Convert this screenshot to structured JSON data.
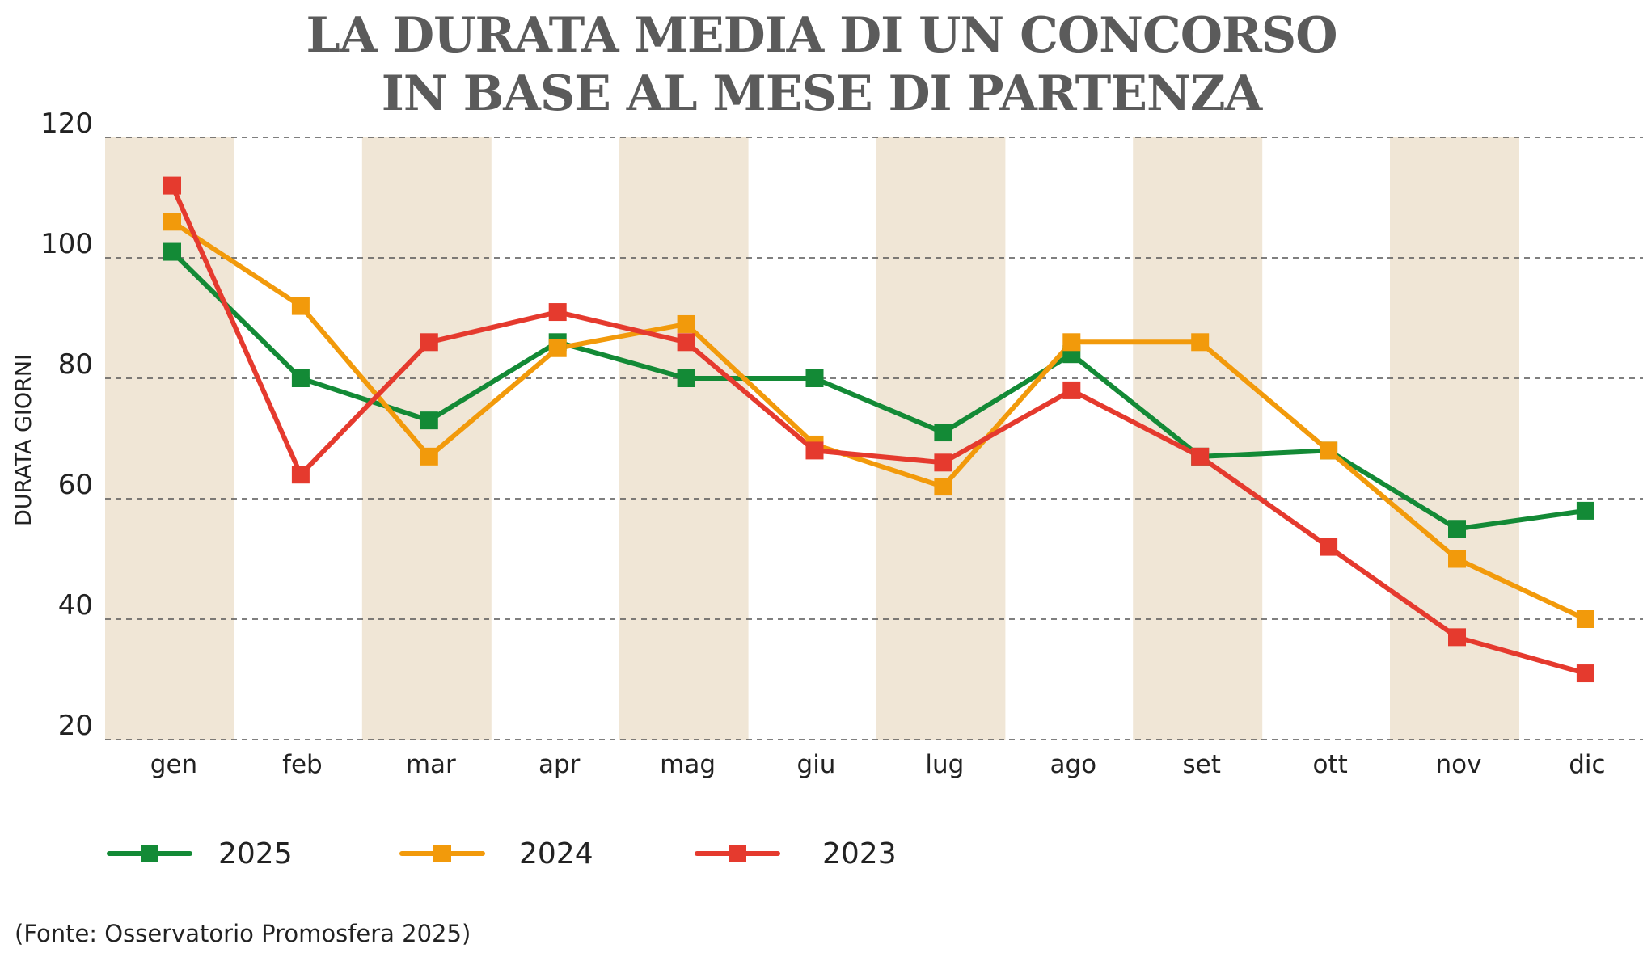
{
  "title": {
    "line1": "LA DURATA MEDIA DI UN CONCORSO",
    "line2": "IN BASE AL MESE DI PARTENZA"
  },
  "source": "(Fonte: Osservatorio Promosfera 2025)",
  "colors": {
    "band": "#f0e6d6",
    "grid": "#555555",
    "text": "#222222",
    "title": "#5b5b5b"
  },
  "chart_data": {
    "type": "line",
    "title": "LA DURATA MEDIA DI UN CONCORSO IN BASE AL MESE DI PARTENZA",
    "xlabel": "",
    "ylabel": "DURATA GIORNI",
    "ylim": [
      20,
      120
    ],
    "yticks": [
      20,
      40,
      60,
      80,
      100,
      120
    ],
    "categories": [
      "gen",
      "feb",
      "mar",
      "apr",
      "mag",
      "giu",
      "lug",
      "ago",
      "set",
      "ott",
      "nov",
      "dic"
    ],
    "grid": true,
    "legend_position": "bottom",
    "series": [
      {
        "name": "2025",
        "color": "#138a36",
        "values": [
          101,
          80,
          73,
          86,
          80,
          80,
          71,
          84,
          67,
          68,
          55,
          58
        ]
      },
      {
        "name": "2024",
        "color": "#f29a0b",
        "values": [
          106,
          92,
          67,
          85,
          89,
          69,
          62,
          86,
          86,
          68,
          50,
          40
        ]
      },
      {
        "name": "2023",
        "color": "#e53a2e",
        "values": [
          112,
          64,
          86,
          91,
          86,
          68,
          66,
          78,
          67,
          52,
          37,
          31
        ]
      }
    ]
  }
}
